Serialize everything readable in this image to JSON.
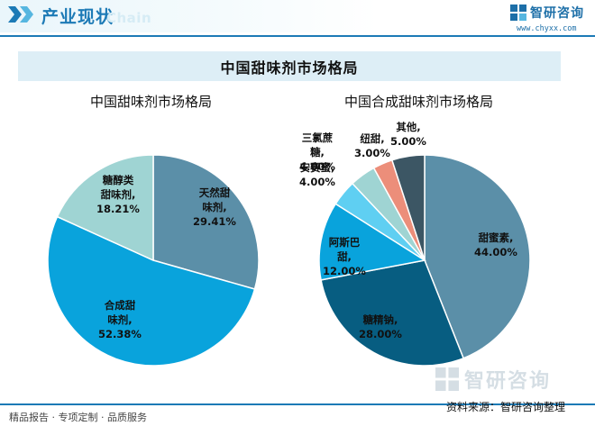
{
  "header": {
    "title": "产业现状",
    "title_en": "Chain",
    "logo_text": "智研咨询",
    "logo_url": "www.chyxx.com"
  },
  "banner_title": "中国甜味剂市场格局",
  "chart_data": [
    {
      "type": "pie",
      "title": "中国甜味剂市场格局",
      "slices": [
        {
          "label_lines": [
            "天然甜",
            "味剂,"
          ],
          "value": 29.41,
          "value_text": "29.41%",
          "color": "#5b8fa8"
        },
        {
          "label_lines": [
            "合成甜",
            "味剂,"
          ],
          "value": 52.38,
          "value_text": "52.38%",
          "color": "#09a3dc"
        },
        {
          "label_lines": [
            "糖醇类",
            "甜味剂,"
          ],
          "value": 18.21,
          "value_text": "18.21%",
          "color": "#9fd4d3"
        }
      ]
    },
    {
      "type": "pie",
      "title": "中国合成甜味剂市场格局",
      "slices": [
        {
          "label_lines": [
            "甜蜜素,"
          ],
          "value": 44.0,
          "value_text": "44.00%",
          "color": "#5b8fa8"
        },
        {
          "label_lines": [
            "糖精钠,"
          ],
          "value": 28.0,
          "value_text": "28.00%",
          "color": "#075d81"
        },
        {
          "label_lines": [
            "阿斯巴",
            "甜,"
          ],
          "value": 12.0,
          "value_text": "12.00%",
          "color": "#09a3dc"
        },
        {
          "label_lines": [
            "安赛蜜,"
          ],
          "value": 4.0,
          "value_text": "4.00%",
          "color": "#5fcff2"
        },
        {
          "label_lines": [
            "三氯蔗",
            "糖,"
          ],
          "value": 4.0,
          "value_text": "4.00%",
          "color": "#9fd4d3"
        },
        {
          "label_lines": [
            "纽甜,"
          ],
          "value": 3.0,
          "value_text": "3.00%",
          "color": "#ec8e7a"
        },
        {
          "label_lines": [
            "其他,"
          ],
          "value": 5.0,
          "value_text": "5.00%",
          "color": "#3c5664"
        }
      ]
    }
  ],
  "footer": {
    "left_text": "精品报告 · 专项定制 · 品质服务",
    "source_text": "资料来源：智研咨询整理",
    "watermark_text": "智研咨询"
  }
}
